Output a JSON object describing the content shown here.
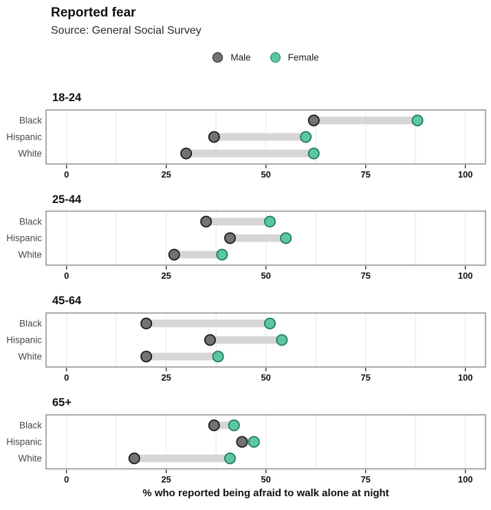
{
  "header": {
    "title": "Reported fear",
    "subtitle": "Source: General Social Survey"
  },
  "legend": {
    "items": [
      {
        "label": "Male",
        "fill": "#737373",
        "stroke": "#1a1a1a"
      },
      {
        "label": "Female",
        "fill": "#5BC8A2",
        "stroke": "#227a5e"
      }
    ]
  },
  "chart_data": {
    "type": "dumbbell",
    "title": "Reported fear",
    "subtitle": "Source: General Social Survey",
    "xlabel": "% who reported being afraid to walk alone at night",
    "xlim": [
      0,
      100
    ],
    "xticks": [
      0,
      25,
      50,
      75,
      100
    ],
    "minor_grid_step": 12.5,
    "grid": "on",
    "legend_position": "top-center",
    "categories": [
      "Black",
      "Hispanic",
      "White"
    ],
    "series_names": [
      "Male",
      "Female"
    ],
    "groups": [
      {
        "label": "18-24",
        "rows": [
          {
            "category": "Black",
            "male": 62,
            "female": 88
          },
          {
            "category": "Hispanic",
            "male": 37,
            "female": 60
          },
          {
            "category": "White",
            "male": 30,
            "female": 62
          }
        ]
      },
      {
        "label": "25-44",
        "rows": [
          {
            "category": "Black",
            "male": 35,
            "female": 51
          },
          {
            "category": "Hispanic",
            "male": 41,
            "female": 55
          },
          {
            "category": "White",
            "male": 27,
            "female": 39
          }
        ]
      },
      {
        "label": "45-64",
        "rows": [
          {
            "category": "Black",
            "male": 20,
            "female": 51
          },
          {
            "category": "Hispanic",
            "male": 36,
            "female": 54
          },
          {
            "category": "White",
            "male": 20,
            "female": 38
          }
        ]
      },
      {
        "label": "65+",
        "rows": [
          {
            "category": "Black",
            "male": 37,
            "female": 42
          },
          {
            "category": "Hispanic",
            "male": 44,
            "female": 47
          },
          {
            "category": "White",
            "male": 17,
            "female": 41
          }
        ]
      }
    ],
    "colors": {
      "male_fill": "#737373",
      "male_stroke": "#1a1a1a",
      "female_fill": "#5BC8A2",
      "female_stroke": "#227a5e",
      "bar": "#d6d6d6",
      "grid": "#e9e9e9",
      "panel_border": "#8f8f8f",
      "panel_bg": "#ffffff",
      "tick": "#333333",
      "tick_label": "#111111",
      "category_label": "#4a4a4a"
    }
  }
}
